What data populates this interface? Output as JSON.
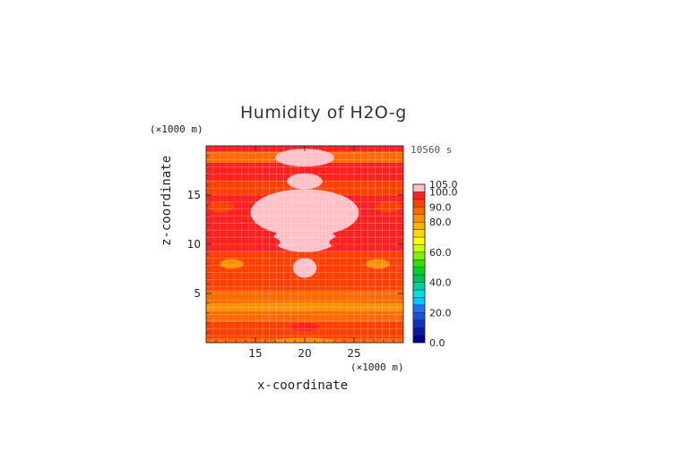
{
  "chart_data": {
    "type": "heatmap",
    "title": "Humidity of H2O-g",
    "xlabel": "x-coordinate",
    "ylabel": "z-coordinate",
    "x_unit": "(×1000 m)",
    "y_unit": "(×1000 m)",
    "time_label": "10560 s",
    "xlim": [
      10,
      30
    ],
    "ylim": [
      0,
      20
    ],
    "x_ticks": [
      "15",
      "20",
      "25"
    ],
    "y_ticks": [
      "5",
      "10",
      "15"
    ],
    "colorbar": {
      "min": 0,
      "max": 105,
      "step": 5,
      "labels": [
        "105.0",
        "100.0",
        "90.0",
        "80.0",
        "60.0",
        "40.0",
        "20.0",
        "0.0"
      ],
      "colors": [
        "#00008b",
        "#0a1aa0",
        "#1030c0",
        "#1850d8",
        "#2070f0",
        "#00c8ff",
        "#00e0e0",
        "#00d0a0",
        "#00c060",
        "#00d020",
        "#30e000",
        "#80f000",
        "#c8ff00",
        "#ffff00",
        "#ffd800",
        "#ffb000",
        "#ff9000",
        "#ff6a00",
        "#ff4000",
        "#ff2020",
        "#ffc0c8"
      ]
    },
    "bands": [
      {
        "z_range": [
          0,
          0.4
        ],
        "value": 85
      },
      {
        "z_range": [
          0.4,
          1.0
        ],
        "value": 90
      },
      {
        "z_range": [
          1.0,
          2.2
        ],
        "value": 92
      },
      {
        "z_range": [
          2.2,
          3.2
        ],
        "value": 88
      },
      {
        "z_range": [
          3.2,
          4.0
        ],
        "value": 82
      },
      {
        "z_range": [
          4.0,
          5.3
        ],
        "value": 86
      },
      {
        "z_range": [
          5.3,
          7.0
        ],
        "value": 92
      },
      {
        "z_range": [
          7.0,
          9.2
        ],
        "value": 90
      },
      {
        "z_range": [
          9.2,
          11.0
        ],
        "value": 97
      },
      {
        "z_range": [
          11.0,
          13.5
        ],
        "value": 99
      },
      {
        "z_range": [
          13.5,
          15.0
        ],
        "value": 97
      },
      {
        "z_range": [
          15.0,
          16.5
        ],
        "value": 92
      },
      {
        "z_range": [
          16.5,
          18.3
        ],
        "value": 96
      },
      {
        "z_range": [
          18.3,
          19.4
        ],
        "value": 88
      },
      {
        "z_range": [
          19.4,
          20.0
        ],
        "value": 96
      }
    ],
    "regions": [
      {
        "shape": "ellipse",
        "cx": 20,
        "cz": 13.2,
        "rx": 5.5,
        "rz": 2.4,
        "value": 101
      },
      {
        "shape": "ellipse",
        "cx": 20,
        "cz": 10.5,
        "rx": 3.2,
        "rz": 1.3,
        "value": 101
      },
      {
        "shape": "ellipse",
        "cx": 20,
        "cz": 16.4,
        "rx": 1.8,
        "rz": 0.8,
        "value": 101
      },
      {
        "shape": "ellipse",
        "cx": 20,
        "cz": 18.8,
        "rx": 3.0,
        "rz": 0.9,
        "value": 101
      },
      {
        "shape": "ellipse",
        "cx": 20,
        "cz": 7.6,
        "rx": 1.2,
        "rz": 1.0,
        "value": 101
      },
      {
        "shape": "ellipse",
        "cx": 12.6,
        "cz": 8.0,
        "rx": 1.2,
        "rz": 0.5,
        "value": 80
      },
      {
        "shape": "ellipse",
        "cx": 27.4,
        "cz": 8.0,
        "rx": 1.2,
        "rz": 0.5,
        "value": 80
      },
      {
        "shape": "ellipse",
        "cx": 11.5,
        "cz": 13.8,
        "rx": 1.3,
        "rz": 0.6,
        "value": 92
      },
      {
        "shape": "ellipse",
        "cx": 28.5,
        "cz": 13.8,
        "rx": 1.3,
        "rz": 0.6,
        "value": 92
      },
      {
        "shape": "ellipse",
        "cx": 15.5,
        "cz": 10.2,
        "rx": 2.0,
        "rz": 0.7,
        "value": 97
      },
      {
        "shape": "ellipse",
        "cx": 24.5,
        "cz": 10.2,
        "rx": 2.0,
        "rz": 0.7,
        "value": 97
      },
      {
        "shape": "ellipse",
        "cx": 20,
        "cz": 0.2,
        "rx": 3.0,
        "rz": 0.3,
        "value": 80
      },
      {
        "shape": "ellipse",
        "cx": 20,
        "cz": 1.6,
        "rx": 1.5,
        "rz": 0.4,
        "value": 97
      },
      {
        "shape": "ellipse",
        "cx": 20,
        "cz": 3.8,
        "rx": 9.9,
        "rz": 0.3,
        "value": 80
      }
    ]
  }
}
